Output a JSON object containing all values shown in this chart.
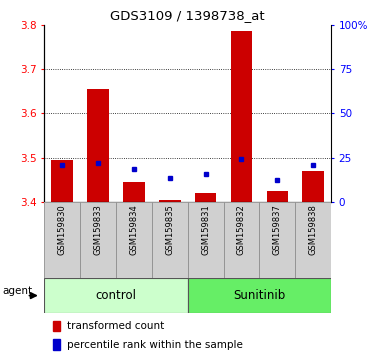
{
  "title": "GDS3109 / 1398738_at",
  "samples": [
    "GSM159830",
    "GSM159833",
    "GSM159834",
    "GSM159835",
    "GSM159831",
    "GSM159832",
    "GSM159837",
    "GSM159838"
  ],
  "red_values": [
    3.495,
    3.655,
    3.445,
    3.405,
    3.42,
    3.785,
    3.425,
    3.47
  ],
  "blue_markers_y": [
    3.483,
    3.487,
    3.473,
    3.453,
    3.462,
    3.497,
    3.45,
    3.483
  ],
  "ymin": 3.4,
  "ymax": 3.8,
  "yticks": [
    3.4,
    3.5,
    3.6,
    3.7,
    3.8
  ],
  "right_yticks": [
    0,
    25,
    50,
    75,
    100
  ],
  "right_yticklabels": [
    "0",
    "25",
    "50",
    "75",
    "100%"
  ],
  "control_color": "#ccffcc",
  "sunitinib_color": "#66ee66",
  "bar_color": "#cc0000",
  "marker_color": "#0000cc",
  "label_area_color": "#d0d0d0",
  "plot_bg": "#ffffff"
}
